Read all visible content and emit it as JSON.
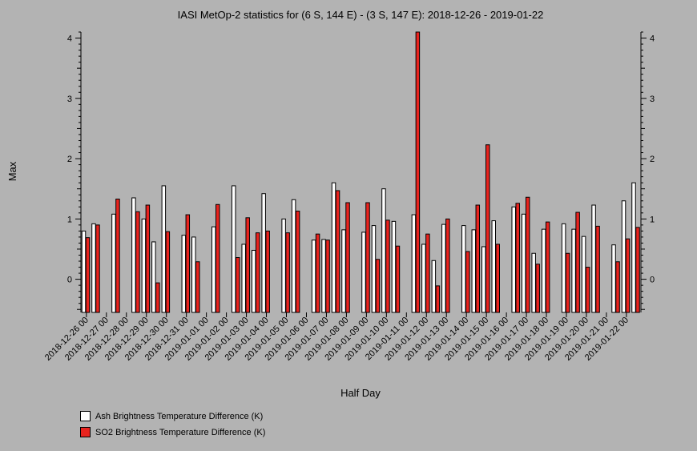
{
  "chart_data": {
    "type": "bar",
    "title": "IASI MetOp-2 statistics for (6 S, 144 E) - (3 S, 147 E): 2018-12-26 - 2019-01-22",
    "xlabel": "Half Day",
    "ylabel": "Max",
    "ylim": [
      -0.55,
      4.1
    ],
    "yticks": [
      0,
      1,
      2,
      3,
      4
    ],
    "legend_position": "bottom-left",
    "date_tick_labels": [
      "2018-12-26 00",
      "2018-12-27 00",
      "2018-12-28 00",
      "2018-12-29 00",
      "2018-12-30 00",
      "2018-12-31 00",
      "2019-01-01 00",
      "2019-01-02 00",
      "2019-01-03 00",
      "2019-01-04 00",
      "2019-01-05 00",
      "2019-01-06 00",
      "2019-01-07 00",
      "2019-01-08 00",
      "2019-01-09 00",
      "2019-01-10 00",
      "2019-01-11 00",
      "2019-01-12 00",
      "2019-01-13 00",
      "2019-01-14 00",
      "2019-01-15 00",
      "2019-01-16 00",
      "2019-01-17 00",
      "2019-01-18 00",
      "2019-01-19 00",
      "2019-01-20 00",
      "2019-01-21 00",
      "2019-01-22 00"
    ],
    "slots": [
      "2018-12-26 00",
      "2018-12-26 12",
      "2018-12-27 00",
      "2018-12-27 12",
      "2018-12-28 00",
      "2018-12-28 12",
      "2018-12-29 00",
      "2018-12-29 12",
      "2018-12-30 00",
      "2018-12-30 12",
      "2018-12-31 00",
      "2018-12-31 12",
      "2019-01-01 00",
      "2019-01-01 12",
      "2019-01-02 00",
      "2019-01-02 12",
      "2019-01-03 00",
      "2019-01-03 12",
      "2019-01-04 00",
      "2019-01-04 12",
      "2019-01-05 00",
      "2019-01-05 12",
      "2019-01-06 00",
      "2019-01-06 12",
      "2019-01-07 00",
      "2019-01-07 12",
      "2019-01-08 00",
      "2019-01-08 12",
      "2019-01-09 00",
      "2019-01-09 12",
      "2019-01-10 00",
      "2019-01-10 12",
      "2019-01-11 00",
      "2019-01-11 12",
      "2019-01-12 00",
      "2019-01-12 12",
      "2019-01-13 00",
      "2019-01-13 12",
      "2019-01-14 00",
      "2019-01-14 12",
      "2019-01-15 00",
      "2019-01-15 12",
      "2019-01-16 00",
      "2019-01-16 12",
      "2019-01-17 00",
      "2019-01-17 12",
      "2019-01-18 00",
      "2019-01-18 12",
      "2019-01-19 00",
      "2019-01-19 12",
      "2019-01-20 00",
      "2019-01-20 12",
      "2019-01-21 00",
      "2019-01-21 12",
      "2019-01-22 00",
      "2019-01-22 12"
    ],
    "series": [
      {
        "name": "Ash Brightness Temperature Difference (K)",
        "color": "#ffffff",
        "values": [
          0.8,
          0.92,
          null,
          1.08,
          null,
          1.35,
          1.0,
          0.62,
          1.55,
          null,
          0.73,
          0.7,
          null,
          0.87,
          null,
          1.55,
          0.58,
          0.48,
          1.42,
          null,
          1.0,
          1.32,
          null,
          0.65,
          0.66,
          1.6,
          0.82,
          null,
          0.78,
          0.89,
          1.5,
          0.96,
          null,
          1.07,
          0.58,
          0.31,
          0.91,
          null,
          0.89,
          0.82,
          0.54,
          0.97,
          null,
          1.2,
          1.08,
          0.43,
          0.83,
          null,
          0.92,
          0.83,
          0.71,
          1.23,
          null,
          0.57,
          1.3,
          1.6
        ]
      },
      {
        "name": "SO2 Brightness Temperature Difference (K)",
        "color": "#e8231e",
        "values": [
          0.69,
          0.9,
          null,
          1.33,
          null,
          1.12,
          1.23,
          -0.06,
          0.79,
          null,
          1.07,
          0.29,
          null,
          1.24,
          null,
          0.36,
          1.02,
          0.77,
          0.8,
          null,
          0.77,
          1.13,
          null,
          0.75,
          0.65,
          1.47,
          1.27,
          null,
          1.27,
          0.33,
          0.98,
          0.55,
          null,
          4.12,
          0.75,
          -0.11,
          1.0,
          null,
          0.46,
          1.23,
          2.23,
          0.58,
          null,
          1.26,
          1.36,
          0.25,
          0.95,
          null,
          0.43,
          1.11,
          0.2,
          0.88,
          null,
          0.29,
          0.67,
          0.86
        ]
      }
    ]
  }
}
